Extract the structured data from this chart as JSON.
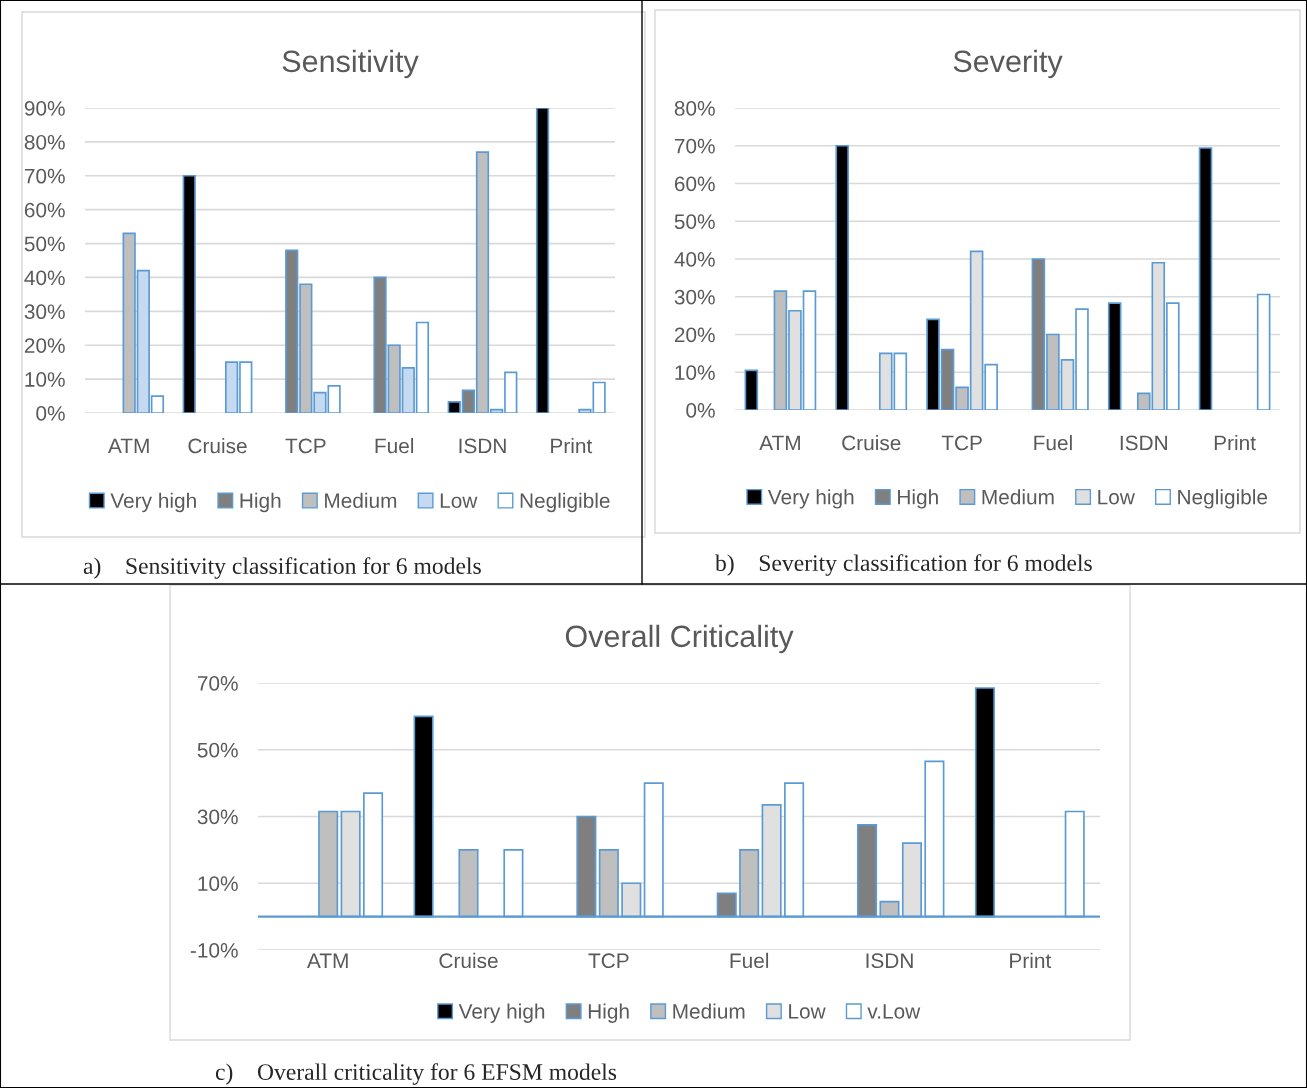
{
  "chart_data": [
    {
      "type": "bar",
      "title": "Sensitivity",
      "categories": [
        "ATM",
        "Cruise",
        "TCP",
        "Fuel",
        "ISDN",
        "Print"
      ],
      "series": [
        {
          "name": "Very high",
          "color": "#000000",
          "values": [
            0,
            70,
            0,
            0,
            3.3,
            90
          ]
        },
        {
          "name": "High",
          "color": "#7f7f7f",
          "values": [
            0,
            0,
            48,
            40,
            6.7,
            0
          ]
        },
        {
          "name": "Medium",
          "color": "#bfbfbf",
          "values": [
            53,
            0,
            38,
            20,
            77,
            0
          ]
        },
        {
          "name": "Low",
          "color": "#c5d9f1",
          "values": [
            42,
            15,
            6,
            13.3,
            1,
            1
          ]
        },
        {
          "name": "Negligible",
          "color": "#ffffff",
          "values": [
            5,
            15,
            8,
            26.7,
            12,
            9
          ]
        }
      ],
      "ylim": [
        0,
        90
      ],
      "yticks": [
        {
          "value": 0,
          "label": "0%"
        },
        {
          "value": 10,
          "label": "10%"
        },
        {
          "value": 20,
          "label": "20%"
        },
        {
          "value": 30,
          "label": "30%"
        },
        {
          "value": 40,
          "label": "40%"
        },
        {
          "value": 50,
          "label": "50%"
        },
        {
          "value": 60,
          "label": "60%"
        },
        {
          "value": 70,
          "label": "70%"
        },
        {
          "value": 80,
          "label": "80%"
        },
        {
          "value": 90,
          "label": "90%"
        }
      ],
      "grid": "y",
      "legend": "bottom",
      "annotations": [
        "a) Sensitivity classification for 6 models"
      ]
    },
    {
      "type": "bar",
      "title": "Severity",
      "categories": [
        "ATM",
        "Cruise",
        "TCP",
        "Fuel",
        "ISDN",
        "Print"
      ],
      "series": [
        {
          "name": "Very high",
          "color": "#000000",
          "values": [
            10.5,
            70,
            24,
            0,
            28.3,
            69.4
          ]
        },
        {
          "name": "High",
          "color": "#7f7f7f",
          "values": [
            0,
            0,
            16,
            40,
            0,
            0
          ]
        },
        {
          "name": "Medium",
          "color": "#bfbfbf",
          "values": [
            31.5,
            0,
            6,
            20,
            4.4,
            0
          ]
        },
        {
          "name": "Low",
          "color": "#e0e0e0",
          "values": [
            26.3,
            15,
            42,
            13.3,
            39,
            0
          ]
        },
        {
          "name": "Negligible",
          "color": "#ffffff",
          "values": [
            31.5,
            15,
            12,
            26.7,
            28.3,
            30.6
          ]
        }
      ],
      "ylim": [
        0,
        80
      ],
      "yticks": [
        {
          "value": 0,
          "label": "0%"
        },
        {
          "value": 10,
          "label": "10%"
        },
        {
          "value": 20,
          "label": "20%"
        },
        {
          "value": 30,
          "label": "30%"
        },
        {
          "value": 40,
          "label": "40%"
        },
        {
          "value": 50,
          "label": "50%"
        },
        {
          "value": 60,
          "label": "60%"
        },
        {
          "value": 70,
          "label": "70%"
        },
        {
          "value": 80,
          "label": "80%"
        }
      ],
      "grid": "y",
      "legend": "bottom",
      "annotations": [
        "b) Severity classification for 6 models"
      ]
    },
    {
      "type": "bar",
      "title": "Overall Criticality",
      "categories": [
        "ATM",
        "Cruise",
        "TCP",
        "Fuel",
        "ISDN",
        "Print"
      ],
      "series": [
        {
          "name": "Very high",
          "color": "#000000",
          "values": [
            0,
            60,
            0,
            0,
            0,
            68.5
          ]
        },
        {
          "name": "High",
          "color": "#7f7f7f",
          "values": [
            0,
            0,
            30,
            7,
            27.5,
            0
          ]
        },
        {
          "name": "Medium",
          "color": "#bfbfbf",
          "values": [
            31.5,
            20,
            20,
            20,
            4.5,
            0
          ]
        },
        {
          "name": "Low",
          "color": "#e0e0e0",
          "values": [
            31.5,
            0,
            10,
            33.5,
            22,
            0
          ]
        },
        {
          "name": "v.Low",
          "color": "#ffffff",
          "values": [
            37,
            20,
            40,
            40,
            46.5,
            31.5
          ]
        }
      ],
      "ylim": [
        -10,
        70
      ],
      "yticks": [
        {
          "value": -10,
          "label": "-10%"
        },
        {
          "value": 10,
          "label": "10%"
        },
        {
          "value": 30,
          "label": "30%"
        },
        {
          "value": 50,
          "label": "50%"
        },
        {
          "value": 70,
          "label": "70%"
        }
      ],
      "grid": "y",
      "legend": "bottom",
      "ref_lines": [
        {
          "axis": "y",
          "value": 0,
          "color": "#5b9bd5"
        }
      ],
      "annotations": [
        "c) Overall criticality for 6 EFSM models"
      ]
    }
  ]
}
